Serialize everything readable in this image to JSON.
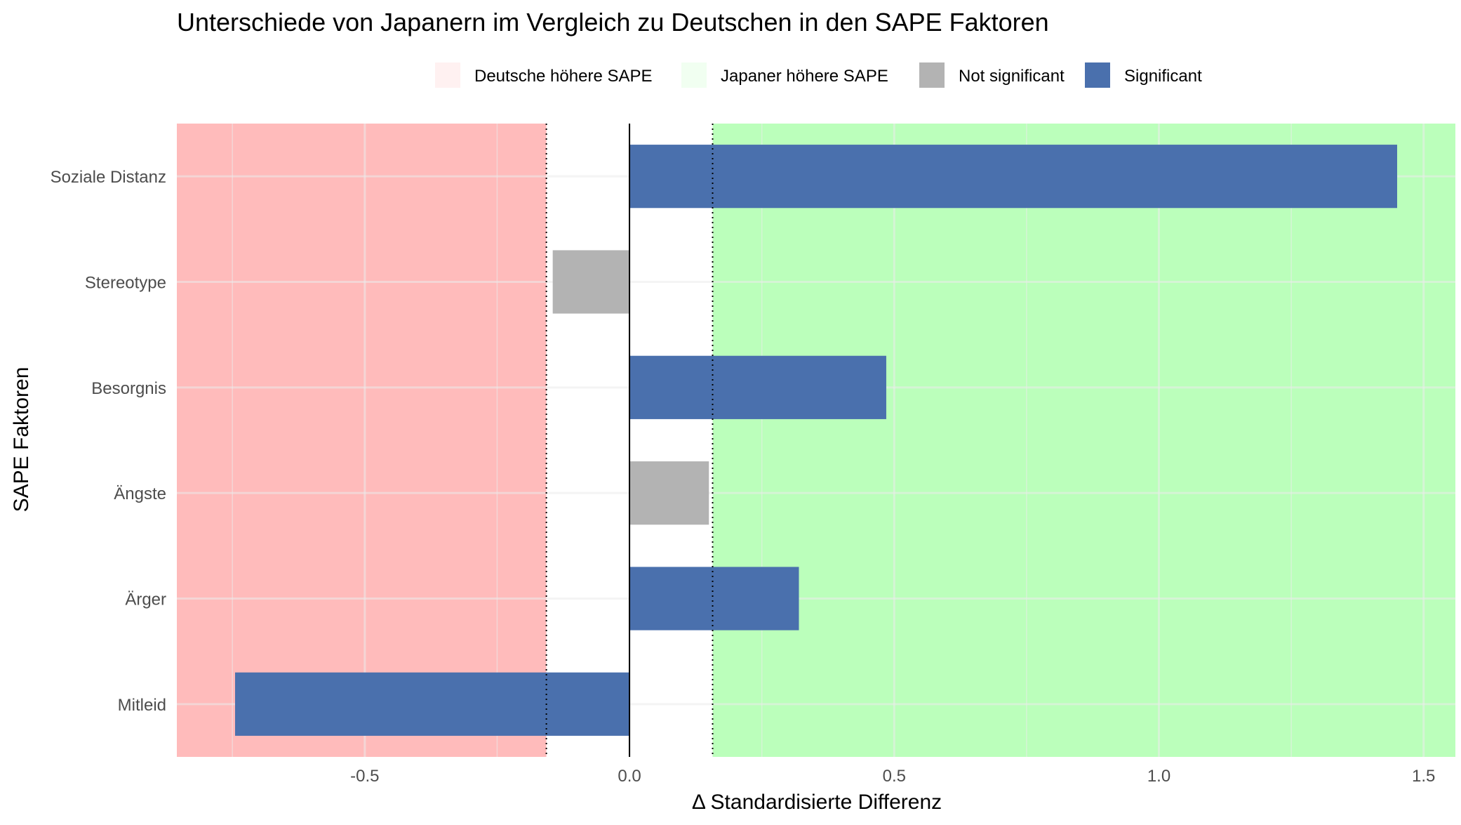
{
  "chart_data": {
    "type": "bar",
    "orientation": "horizontal",
    "title": "Unterschiede von Japanern im Vergleich zu Deutschen in den SAPE Faktoren",
    "xlabel": "Δ Standardisierte Differenz",
    "ylabel": "SAPE Faktoren",
    "xlim": [
      -0.855,
      1.56
    ],
    "x_ticks": [
      -0.5,
      0.0,
      0.5,
      1.0,
      1.5
    ],
    "x_tick_labels": [
      "-0.5",
      "0.0",
      "0.5",
      "1.0",
      "1.5"
    ],
    "grid": true,
    "legend_position": "top",
    "categories": [
      "Soziale Distanz",
      "Stereotype",
      "Besorgnis",
      "Ängste",
      "Ärger",
      "Mitleid"
    ],
    "values": [
      1.45,
      -0.145,
      0.485,
      0.15,
      0.32,
      -0.745
    ],
    "significance": [
      "Significant",
      "Not significant",
      "Significant",
      "Not significant",
      "Significant",
      "Significant"
    ],
    "thresholds": [
      -0.157,
      0.157
    ],
    "regions": [
      {
        "name": "Deutsche höhere SAPE",
        "from": -0.855,
        "to": -0.157,
        "color": "#ffbbbb"
      },
      {
        "name": "Japaner höhere SAPE",
        "from": 0.157,
        "to": 1.56,
        "color": "#bbffbb"
      }
    ],
    "legend": [
      {
        "label": "Deutsche höhere SAPE",
        "color": "#fff1f1"
      },
      {
        "label": "Japaner höhere SAPE",
        "color": "#f1fff1"
      },
      {
        "label": "Not significant",
        "color": "#b3b3b3"
      },
      {
        "label": "Significant",
        "color": "#4a70ad"
      }
    ],
    "colors": {
      "significant": "#4a70ad",
      "not_significant": "#b3b3b3",
      "grid": "#ebebeb",
      "zero_line": "#000000",
      "threshold_line": "#000000",
      "text": "#000000",
      "tick_text": "#4d4d4d"
    }
  }
}
